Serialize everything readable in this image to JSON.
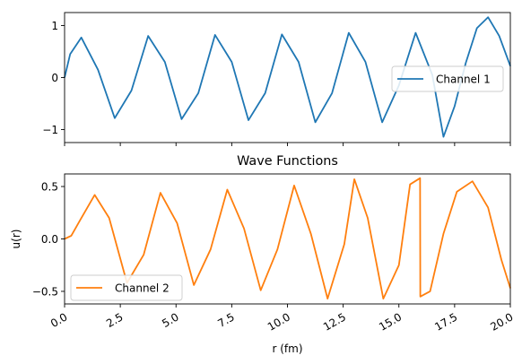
{
  "chart_data": [
    {
      "type": "line",
      "title": "",
      "xlabel": "",
      "ylabel": "",
      "xlim": [
        0,
        20
      ],
      "ylim": [
        -1.25,
        1.25
      ],
      "y_ticks": [
        1,
        0,
        -1
      ],
      "y_tick_labels": [
        "1",
        "0",
        "−1"
      ],
      "x_ticks": [
        0,
        2.5,
        5,
        7.5,
        10,
        12.5,
        15,
        17.5,
        20
      ],
      "x_tick_labels_visible": false,
      "grid": false,
      "legend_placement": "center-right",
      "series": [
        {
          "name": "Channel 1",
          "color": "#1f77b4",
          "x": [
            0,
            0.25,
            0.75,
            1.5,
            2.25,
            3.0,
            3.75,
            4.5,
            5.25,
            6.0,
            6.75,
            7.5,
            8.25,
            9.0,
            9.75,
            10.5,
            11.25,
            12.0,
            12.75,
            13.5,
            14.25,
            15.0,
            15.75,
            16.5,
            17.0,
            17.5,
            18.0,
            18.5,
            19.0,
            19.5,
            20.0
          ],
          "y": [
            0,
            0.45,
            0.77,
            0.15,
            -0.78,
            -0.25,
            0.8,
            0.3,
            -0.8,
            -0.3,
            0.82,
            0.3,
            -0.82,
            -0.3,
            0.83,
            0.3,
            -0.86,
            -0.3,
            0.86,
            0.3,
            -0.86,
            -0.15,
            0.86,
            0.05,
            -1.14,
            -0.55,
            0.28,
            0.95,
            1.16,
            0.8,
            0.22
          ]
        }
      ]
    },
    {
      "type": "line",
      "title": "Wave Functions",
      "xlabel": "r (fm)",
      "ylabel": "u(r)",
      "xlim": [
        0,
        20
      ],
      "ylim": [
        -0.62,
        0.62
      ],
      "y_ticks": [
        0.5,
        0.0,
        -0.5
      ],
      "y_tick_labels": [
        "0.5",
        "0.0",
        "−0.5"
      ],
      "x_ticks": [
        0,
        2.5,
        5,
        7.5,
        10,
        12.5,
        15,
        17.5,
        20
      ],
      "x_tick_labels": [
        "0.0",
        "2.5",
        "5.0",
        "7.5",
        "10.0",
        "12.5",
        "15.0",
        "17.5",
        "20.0"
      ],
      "grid": false,
      "legend_placement": "lower-left",
      "series": [
        {
          "name": "Channel 2",
          "color": "#ff7f0e",
          "x": [
            0,
            0.3,
            0.7,
            1.35,
            2.0,
            2.8,
            3.55,
            4.3,
            5.05,
            5.8,
            6.55,
            7.3,
            8.05,
            8.8,
            9.55,
            10.3,
            11.05,
            11.8,
            12.55,
            13.0,
            13.6,
            14.3,
            15.0,
            15.5,
            15.95,
            15.96,
            16.4,
            17.0,
            17.6,
            18.3,
            19.0,
            19.6,
            20.0
          ],
          "y": [
            0,
            0.03,
            0.18,
            0.42,
            0.2,
            -0.42,
            -0.15,
            0.44,
            0.15,
            -0.44,
            -0.1,
            0.47,
            0.1,
            -0.49,
            -0.1,
            0.51,
            0.05,
            -0.57,
            -0.05,
            0.57,
            0.2,
            -0.57,
            -0.25,
            0.52,
            0.58,
            -0.55,
            -0.5,
            0.05,
            0.45,
            0.55,
            0.3,
            -0.2,
            -0.47
          ]
        }
      ]
    }
  ]
}
